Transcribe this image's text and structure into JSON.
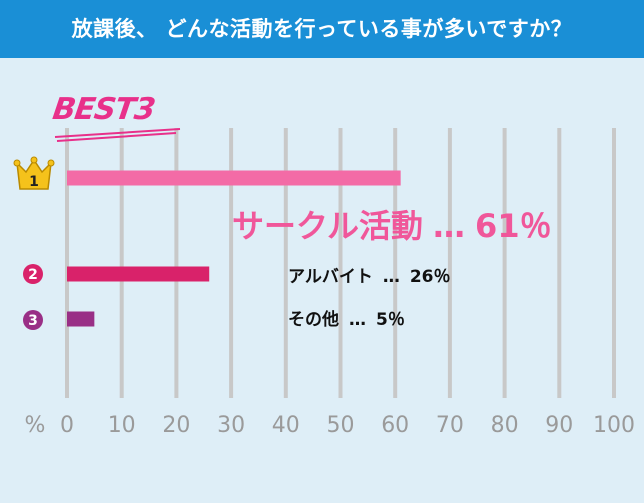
{
  "header": {
    "title": "放課後、 どんな活動を行っている事が多いですか？"
  },
  "badge": {
    "text": "BEST3"
  },
  "chart_data": {
    "type": "bar",
    "orientation": "horizontal",
    "title": "放課後、 どんな活動を行っている事が多いですか？",
    "xlabel": "%",
    "xlim": [
      0,
      100
    ],
    "x_ticks": [
      "0",
      "10",
      "20",
      "30",
      "40",
      "50",
      "60",
      "70",
      "80",
      "90",
      "100"
    ],
    "grid": true,
    "categories": [
      "サークル活動",
      "アルバイト",
      "その他"
    ],
    "values": [
      61,
      26,
      5
    ],
    "value_labels": [
      "61％",
      "26％",
      "5％"
    ],
    "ranks": [
      "1",
      "2",
      "3"
    ],
    "separator": "…",
    "colors": [
      "#f36ba6",
      "#d9226a",
      "#992f86"
    ]
  },
  "colors": {
    "header": "#1a8fd6",
    "background": "#deeef7",
    "grid": "#c8c8c8",
    "tick": "#9a9a9a",
    "accent_pink": "#f0579a",
    "gold": "#f5c21b"
  }
}
